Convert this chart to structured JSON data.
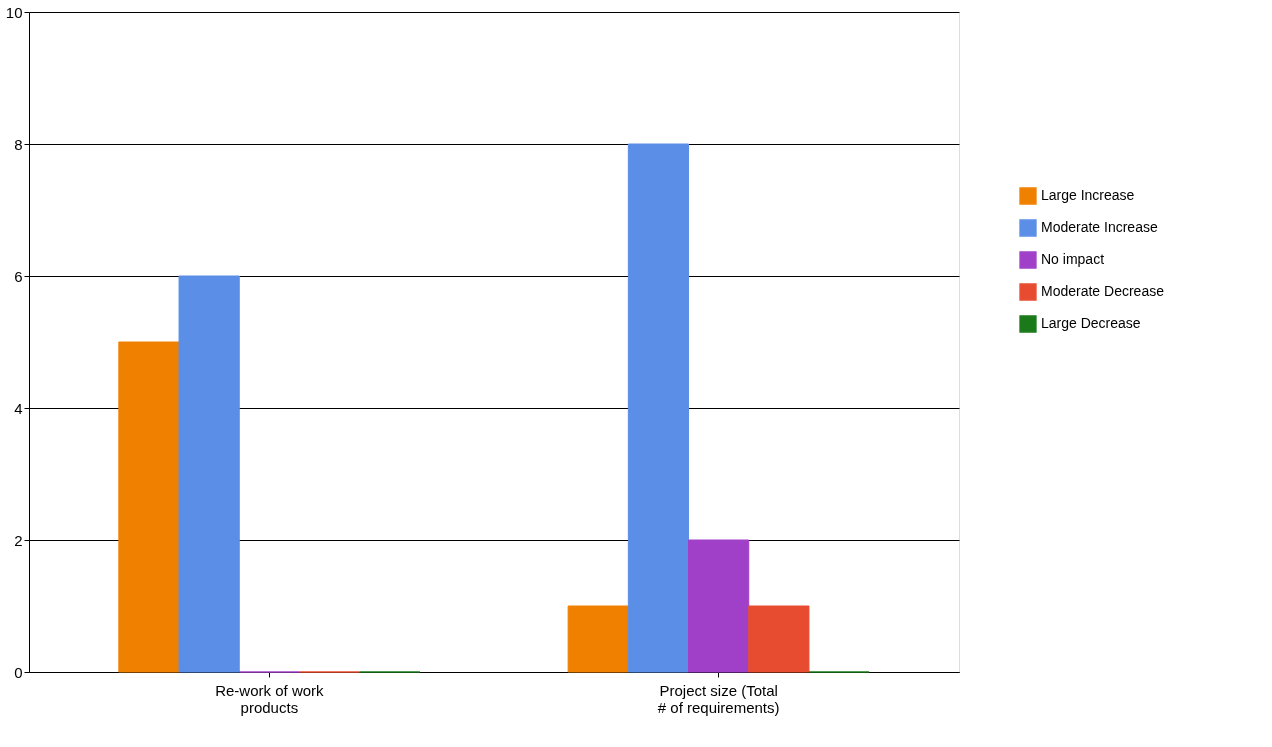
{
  "chart_data": {
    "type": "bar",
    "categories": [
      "Re-work of work products",
      "Project size (Total # of requirements)"
    ],
    "series": [
      {
        "name": "Large Increase",
        "color": "#f08000",
        "values": [
          5,
          1
        ]
      },
      {
        "name": "Moderate Increase",
        "color": "#5b8ee6",
        "values": [
          6,
          8
        ]
      },
      {
        "name": "No impact",
        "color": "#a040c8",
        "values": [
          0,
          2
        ]
      },
      {
        "name": "Moderate Decrease",
        "color": "#e84c30",
        "values": [
          0,
          1
        ]
      },
      {
        "name": "Large Decrease",
        "color": "#1a7a1a",
        "values": [
          0,
          0
        ]
      }
    ],
    "ylim": [
      0,
      10
    ],
    "yticks": [
      0,
      2,
      4,
      6,
      8,
      10
    ],
    "grid": "y",
    "legend": "right"
  }
}
